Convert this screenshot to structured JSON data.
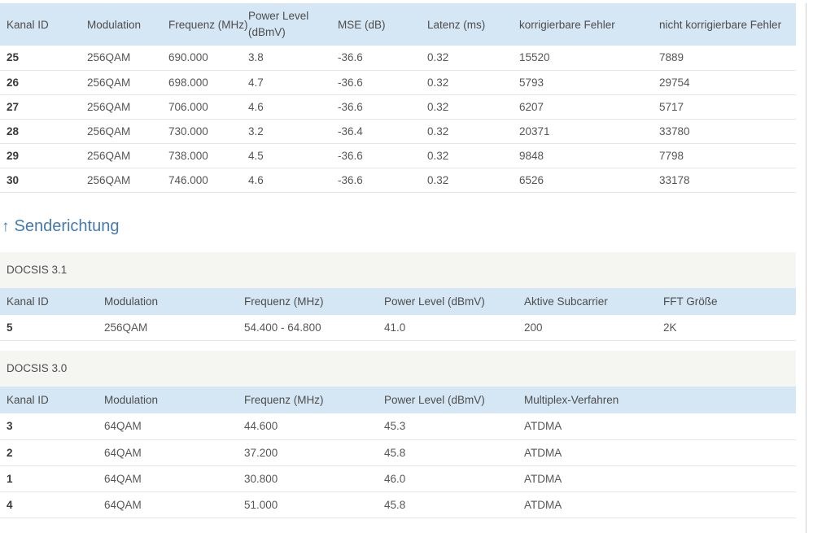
{
  "colors": {
    "header_bg": "#d5e6f4",
    "panel_bg": "#f5f5f2",
    "heading_blue": "#4579b2",
    "row_border": "#e6e6e6"
  },
  "downstream_table": {
    "headers": [
      "Kanal ID",
      "Modulation",
      "Frequenz (MHz)",
      "Power Level (dBmV)",
      "MSE (dB)",
      "Latenz (ms)",
      "korrigierbare Fehler",
      "nicht korrigierbare Fehler"
    ],
    "rows": [
      [
        "25",
        "256QAM",
        "690.000",
        "3.8",
        "-36.6",
        "0.32",
        "15520",
        "7889"
      ],
      [
        "26",
        "256QAM",
        "698.000",
        "4.7",
        "-36.6",
        "0.32",
        "5793",
        "29754"
      ],
      [
        "27",
        "256QAM",
        "706.000",
        "4.6",
        "-36.6",
        "0.32",
        "6207",
        "5717"
      ],
      [
        "28",
        "256QAM",
        "730.000",
        "3.2",
        "-36.4",
        "0.32",
        "20371",
        "33780"
      ],
      [
        "29",
        "256QAM",
        "738.000",
        "4.5",
        "-36.6",
        "0.32",
        "9848",
        "7798"
      ],
      [
        "30",
        "256QAM",
        "746.000",
        "4.6",
        "-36.6",
        "0.32",
        "6526",
        "33178"
      ]
    ]
  },
  "upstream_section": {
    "heading_arrow": "↑",
    "heading_text": "Senderichtung",
    "docsis31": {
      "title": "DOCSIS 3.1",
      "headers": [
        "Kanal ID",
        "Modulation",
        "Frequenz (MHz)",
        "Power Level (dBmV)",
        "Aktive Subcarrier",
        "FFT Größe"
      ],
      "rows": [
        [
          "5",
          "256QAM",
          "54.400 - 64.800",
          "41.0",
          "200",
          "2K"
        ]
      ]
    },
    "docsis30": {
      "title": "DOCSIS 3.0",
      "headers": [
        "Kanal ID",
        "Modulation",
        "Frequenz (MHz)",
        "Power Level (dBmV)",
        "Multiplex-Verfahren"
      ],
      "rows": [
        [
          "3",
          "64QAM",
          "44.600",
          "45.3",
          "ATDMA"
        ],
        [
          "2",
          "64QAM",
          "37.200",
          "45.8",
          "ATDMA"
        ],
        [
          "1",
          "64QAM",
          "30.800",
          "46.0",
          "ATDMA"
        ],
        [
          "4",
          "64QAM",
          "51.000",
          "45.8",
          "ATDMA"
        ]
      ]
    }
  }
}
